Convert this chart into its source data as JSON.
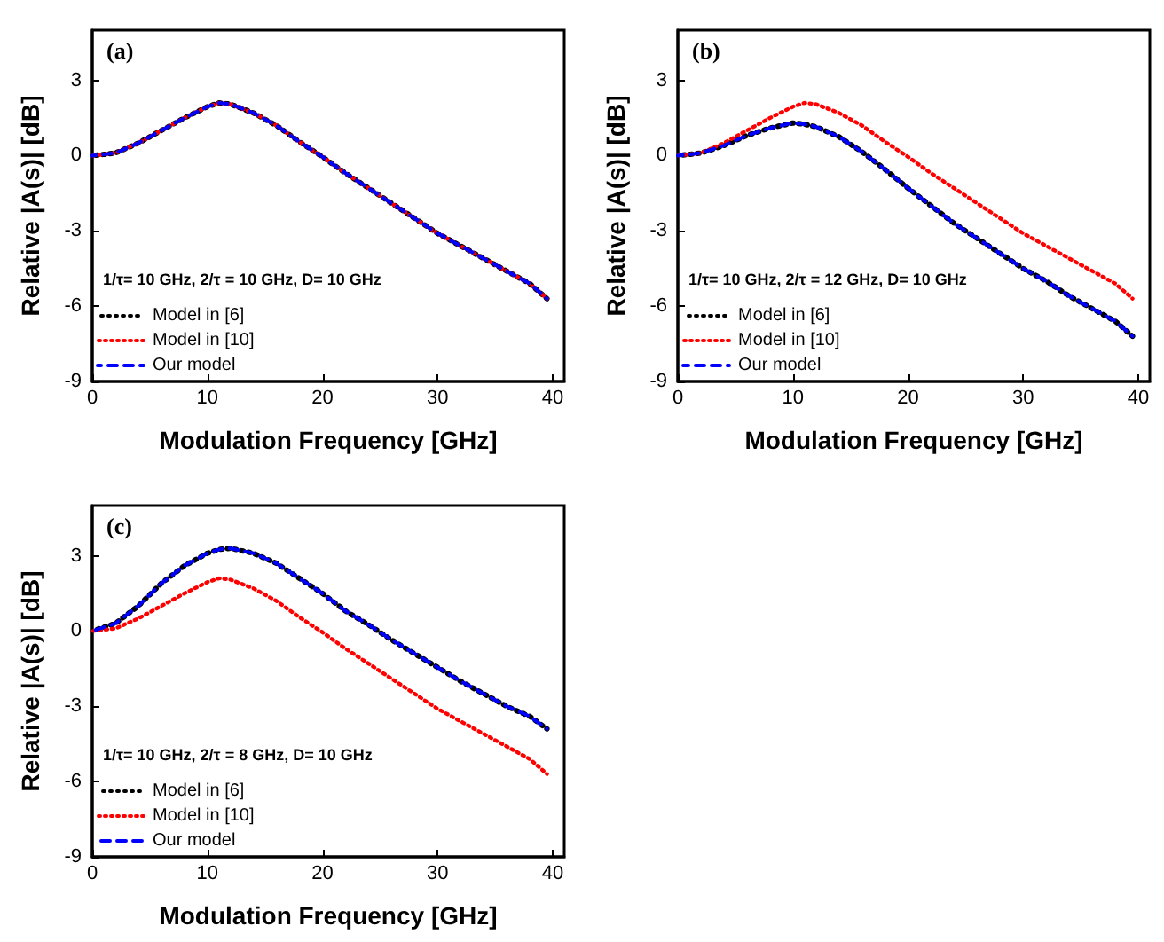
{
  "chart_data": [
    {
      "type": "line",
      "annotations": [
        "(a)",
        "1/τ= 10 GHz, 2/τ = 10 GHz, D= 10 GHz"
      ],
      "xlabel": "Modulation Frequency [GHz]",
      "ylabel": "Relative |A(s)| [dB]",
      "xlim": [
        0,
        41
      ],
      "ylim": [
        -9,
        5
      ],
      "xticks": [
        0,
        10,
        20,
        30,
        40
      ],
      "yticks": [
        -9,
        -6,
        -3,
        0,
        3
      ],
      "grid": false,
      "legend": "bottom left",
      "marker": "none",
      "x": [
        0,
        2,
        4,
        6,
        8,
        10,
        11,
        12,
        14,
        16,
        18,
        20,
        22,
        24,
        26,
        28,
        30,
        32,
        34,
        36,
        38,
        39.5
      ],
      "series": [
        {
          "name": "Model in [6]",
          "color": "#000000",
          "line_style": "dotted",
          "values": [
            0,
            0.1,
            0.5,
            1.0,
            1.5,
            1.95,
            2.1,
            2.05,
            1.7,
            1.2,
            0.55,
            -0.05,
            -0.7,
            -1.3,
            -1.9,
            -2.5,
            -3.1,
            -3.6,
            -4.1,
            -4.6,
            -5.1,
            -5.7
          ]
        },
        {
          "name": "Model in [10]",
          "color": "#ff0000",
          "line_style": "dotted",
          "values": [
            0,
            0.1,
            0.5,
            1.0,
            1.5,
            1.95,
            2.1,
            2.05,
            1.7,
            1.2,
            0.55,
            -0.05,
            -0.7,
            -1.3,
            -1.9,
            -2.5,
            -3.1,
            -3.6,
            -4.1,
            -4.6,
            -5.1,
            -5.7
          ]
        },
        {
          "name": "Our model",
          "color": "#0000ff",
          "line_style": "dashed",
          "values": [
            0,
            0.1,
            0.5,
            1.0,
            1.5,
            1.95,
            2.1,
            2.05,
            1.7,
            1.2,
            0.55,
            -0.05,
            -0.7,
            -1.3,
            -1.9,
            -2.5,
            -3.1,
            -3.6,
            -4.1,
            -4.6,
            -5.1,
            -5.7
          ]
        }
      ]
    },
    {
      "type": "line",
      "annotations": [
        "(b)",
        "1/τ= 10 GHz, 2/τ = 12 GHz, D= 10 GHz"
      ],
      "xlabel": "Modulation Frequency [GHz]",
      "ylabel": "Relative |A(s)| [dB]",
      "xlim": [
        0,
        41
      ],
      "ylim": [
        -9,
        5
      ],
      "xticks": [
        0,
        10,
        20,
        30,
        40
      ],
      "yticks": [
        -9,
        -6,
        -3,
        0,
        3
      ],
      "grid": false,
      "legend": "bottom left",
      "marker": "none",
      "x": [
        0,
        2,
        4,
        6,
        8,
        10,
        11,
        12,
        14,
        16,
        18,
        20,
        22,
        24,
        26,
        28,
        30,
        32,
        34,
        36,
        38,
        39.5
      ],
      "series": [
        {
          "name": "Model in [6]",
          "color": "#000000",
          "line_style": "dotted",
          "values": [
            0,
            0.1,
            0.4,
            0.8,
            1.1,
            1.3,
            1.25,
            1.15,
            0.75,
            0.15,
            -0.55,
            -1.3,
            -2.0,
            -2.7,
            -3.3,
            -3.9,
            -4.5,
            -5.0,
            -5.6,
            -6.1,
            -6.6,
            -7.2
          ]
        },
        {
          "name": "Model in [10]",
          "color": "#ff0000",
          "line_style": "dotted",
          "values": [
            0,
            0.1,
            0.5,
            1.0,
            1.5,
            1.95,
            2.1,
            2.05,
            1.7,
            1.2,
            0.55,
            -0.05,
            -0.7,
            -1.3,
            -1.9,
            -2.5,
            -3.1,
            -3.6,
            -4.1,
            -4.6,
            -5.1,
            -5.7
          ]
        },
        {
          "name": "Our model",
          "color": "#0000ff",
          "line_style": "dashed",
          "values": [
            0,
            0.1,
            0.4,
            0.8,
            1.1,
            1.3,
            1.25,
            1.15,
            0.75,
            0.15,
            -0.55,
            -1.3,
            -2.0,
            -2.7,
            -3.3,
            -3.9,
            -4.5,
            -5.0,
            -5.6,
            -6.1,
            -6.6,
            -7.2
          ]
        }
      ]
    },
    {
      "type": "line",
      "annotations": [
        "(c)",
        "1/τ= 10 GHz, 2/τ = 8 GHz, D= 10 GHz"
      ],
      "xlabel": "Modulation Frequency [GHz]",
      "ylabel": "Relative |A(s)| [dB]",
      "xlim": [
        0,
        41
      ],
      "ylim": [
        -9,
        5
      ],
      "xticks": [
        0,
        10,
        20,
        30,
        40
      ],
      "yticks": [
        -9,
        -6,
        -3,
        0,
        3
      ],
      "grid": false,
      "legend": "bottom left",
      "marker": "none",
      "x": [
        0,
        2,
        4,
        6,
        8,
        10,
        11,
        12,
        14,
        16,
        18,
        20,
        22,
        24,
        26,
        28,
        30,
        32,
        34,
        36,
        38,
        39.5
      ],
      "series": [
        {
          "name": "Model in [6]",
          "color": "#000000",
          "line_style": "dotted",
          "values": [
            0,
            0.3,
            1.0,
            1.9,
            2.6,
            3.1,
            3.25,
            3.3,
            3.1,
            2.7,
            2.1,
            1.5,
            0.8,
            0.25,
            -0.35,
            -0.9,
            -1.45,
            -2.0,
            -2.5,
            -3.0,
            -3.4,
            -3.9
          ]
        },
        {
          "name": "Model in [10]",
          "color": "#ff0000",
          "line_style": "dotted",
          "values": [
            0,
            0.1,
            0.5,
            1.0,
            1.5,
            1.95,
            2.1,
            2.05,
            1.7,
            1.2,
            0.55,
            -0.05,
            -0.7,
            -1.3,
            -1.9,
            -2.5,
            -3.1,
            -3.6,
            -4.1,
            -4.6,
            -5.1,
            -5.7
          ]
        },
        {
          "name": "Our model",
          "color": "#0000ff",
          "line_style": "dashed",
          "values": [
            0,
            0.3,
            1.0,
            1.9,
            2.6,
            3.1,
            3.25,
            3.3,
            3.1,
            2.7,
            2.1,
            1.5,
            0.8,
            0.25,
            -0.35,
            -0.9,
            -1.45,
            -2.0,
            -2.5,
            -3.0,
            -3.4,
            -3.9
          ]
        }
      ]
    }
  ]
}
